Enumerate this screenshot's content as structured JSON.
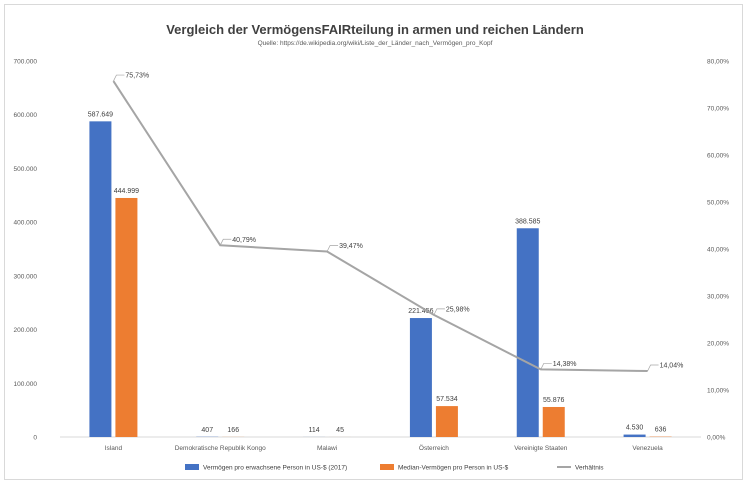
{
  "chart_data": {
    "type": "bar",
    "title": "Vergleich der VermögensFAIRteilung in armen und reichen Ländern",
    "subtitle": "Quelle: https://de.wikipedia.org/wiki/Liste_der_Länder_nach_Vermögen_pro_Kopf",
    "categories": [
      "Island",
      "Demokratische Republik Kongo",
      "Malawi",
      "Österreich",
      "Vereinigte Staaten",
      "Venezuela"
    ],
    "series": [
      {
        "name": "Vermögen pro erwachsene Person in US-$ (2017)",
        "type": "bar",
        "axis": "left",
        "color": "#4472c4",
        "values": [
          587649,
          407,
          114,
          221456,
          388585,
          4530
        ],
        "labels": [
          "587.649",
          "407",
          "114",
          "221.456",
          "388.585",
          "4.530"
        ]
      },
      {
        "name": "Median-Vermögen pro Person in US-$",
        "type": "bar",
        "axis": "left",
        "color": "#ed7d31",
        "values": [
          444999,
          166,
          45,
          57534,
          55876,
          636
        ],
        "labels": [
          "444.999",
          "166",
          "45",
          "57.534",
          "55.876",
          "636"
        ]
      },
      {
        "name": "Verhältnis",
        "type": "line",
        "axis": "right",
        "color": "#a5a5a5",
        "values": [
          0.7573,
          0.4079,
          0.3947,
          0.2598,
          0.1438,
          0.1404
        ],
        "labels": [
          "75,73%",
          "40,79%",
          "39,47%",
          "25,98%",
          "14,38%",
          "14,04%"
        ]
      }
    ],
    "y_left": {
      "min": 0,
      "max": 700000,
      "step": 100000,
      "tick_labels": [
        "0",
        "100.000",
        "200.000",
        "300.000",
        "400.000",
        "500.000",
        "600.000",
        "700.000"
      ]
    },
    "y_right": {
      "min": 0,
      "max": 0.8,
      "step": 0.1,
      "tick_labels": [
        "0,00%",
        "10,00%",
        "20,00%",
        "30,00%",
        "40,00%",
        "50,00%",
        "60,00%",
        "70,00%",
        "80,00%"
      ]
    },
    "grid": false,
    "legend_position": "bottom"
  }
}
